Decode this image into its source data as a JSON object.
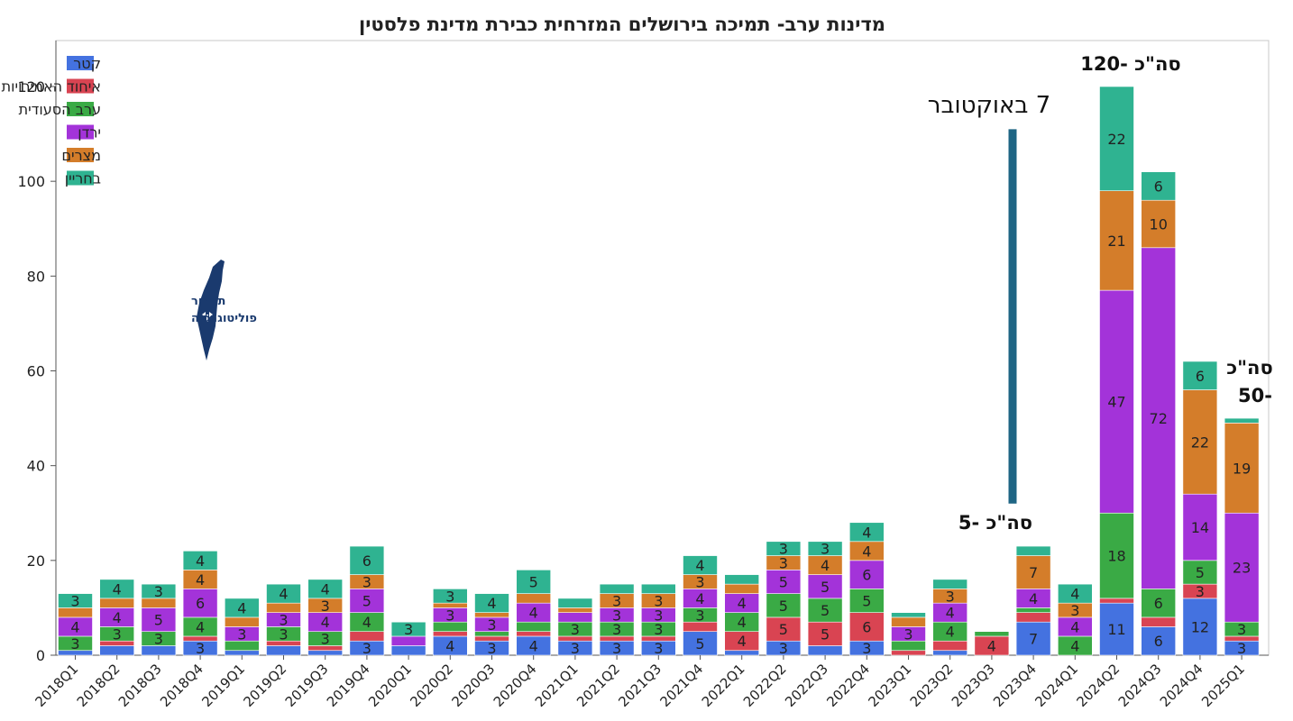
{
  "chart_data": {
    "type": "bar",
    "stacked": true,
    "title": "מדינות ערב- תמיכה בירושלים המזרחית כבירת מדינת פלסטין",
    "xlabel": "",
    "ylabel": "",
    "ylim": [
      0,
      128
    ],
    "yticks": [
      0,
      20,
      40,
      60,
      80,
      100,
      120
    ],
    "grid": false,
    "legend_position": "top-left",
    "categories": [
      "2018Q1",
      "2018Q2",
      "2018Q3",
      "2018Q4",
      "2019Q1",
      "2019Q2",
      "2019Q3",
      "2019Q4",
      "2020Q1",
      "2020Q2",
      "2020Q3",
      "2020Q4",
      "2021Q1",
      "2021Q2",
      "2021Q3",
      "2021Q4",
      "2022Q1",
      "2022Q2",
      "2022Q3",
      "2022Q4",
      "2023Q1",
      "2023Q2",
      "2023Q3",
      "2023Q4",
      "2024Q1",
      "2024Q2",
      "2024Q3",
      "2024Q4",
      "2025Q1"
    ],
    "series": [
      {
        "name": "קטר",
        "color": "#4472e0",
        "values": [
          1,
          2,
          2,
          3,
          1,
          2,
          1,
          3,
          2,
          4,
          3,
          4,
          3,
          3,
          3,
          5,
          1,
          3,
          2,
          3,
          0,
          1,
          0,
          7,
          0,
          11,
          6,
          12,
          3
        ]
      },
      {
        "name": "איחוד האמירויות",
        "color": "#d94452",
        "values": [
          0,
          1,
          0,
          1,
          0,
          1,
          1,
          2,
          0,
          1,
          1,
          1,
          1,
          1,
          1,
          2,
          4,
          5,
          5,
          6,
          1,
          2,
          4,
          2,
          0,
          1,
          2,
          3,
          1
        ]
      },
      {
        "name": "ערב הסעודית",
        "color": "#3aaa45",
        "values": [
          3,
          3,
          3,
          4,
          2,
          3,
          3,
          4,
          0,
          2,
          1,
          2,
          3,
          3,
          3,
          3,
          4,
          5,
          5,
          5,
          2,
          4,
          1,
          1,
          4,
          18,
          6,
          5,
          3
        ]
      },
      {
        "name": "ירדן",
        "color": "#a333d9",
        "values": [
          4,
          4,
          5,
          6,
          3,
          3,
          4,
          5,
          2,
          3,
          3,
          4,
          2,
          3,
          3,
          4,
          4,
          5,
          5,
          6,
          3,
          4,
          0,
          4,
          4,
          47,
          72,
          14,
          23
        ]
      },
      {
        "name": "מצרים",
        "color": "#d47d2a",
        "values": [
          2,
          2,
          2,
          4,
          2,
          2,
          3,
          3,
          0,
          1,
          1,
          2,
          1,
          3,
          3,
          3,
          2,
          3,
          4,
          4,
          2,
          3,
          0,
          7,
          3,
          21,
          10,
          22,
          19
        ]
      },
      {
        "name": "בחריין",
        "color": "#2fb391",
        "values": [
          3,
          4,
          3,
          4,
          4,
          4,
          4,
          6,
          3,
          3,
          4,
          5,
          2,
          2,
          2,
          4,
          2,
          3,
          3,
          4,
          1,
          2,
          0,
          2,
          4,
          22,
          6,
          6,
          1
        ]
      }
    ],
    "segment_labels": [
      {
        "cat": "2018Q1",
        "series": "ערב הסעודית",
        "text": "3"
      },
      {
        "cat": "2018Q1",
        "series": "ירדן",
        "text": "4"
      },
      {
        "cat": "2018Q1",
        "series": "בחריין",
        "text": "3"
      },
      {
        "cat": "2018Q2",
        "series": "ערב הסעודית",
        "text": "3"
      },
      {
        "cat": "2018Q2",
        "series": "ירדן",
        "text": "4"
      },
      {
        "cat": "2018Q2",
        "series": "בחריין",
        "text": "4"
      },
      {
        "cat": "2018Q3",
        "series": "ערב הסעודית",
        "text": "3"
      },
      {
        "cat": "2018Q3",
        "series": "ירדן",
        "text": "5"
      },
      {
        "cat": "2018Q3",
        "series": "בחריין",
        "text": "3"
      },
      {
        "cat": "2018Q4",
        "series": "קטר",
        "text": "3"
      },
      {
        "cat": "2018Q4",
        "series": "ערב הסעודית",
        "text": "4"
      },
      {
        "cat": "2018Q4",
        "series": "ירדן",
        "text": "6"
      },
      {
        "cat": "2018Q4",
        "series": "מצרים",
        "text": "4"
      },
      {
        "cat": "2018Q4",
        "series": "בחריין",
        "text": "4"
      },
      {
        "cat": "2019Q1",
        "series": "ירדן",
        "text": "3"
      },
      {
        "cat": "2019Q1",
        "series": "בחריין",
        "text": "4"
      },
      {
        "cat": "2019Q2",
        "series": "ערב הסעודית",
        "text": "3"
      },
      {
        "cat": "2019Q2",
        "series": "ירדן",
        "text": "3"
      },
      {
        "cat": "2019Q2",
        "series": "בחריין",
        "text": "4"
      },
      {
        "cat": "2019Q3",
        "series": "ערב הסעודית",
        "text": "3"
      },
      {
        "cat": "2019Q3",
        "series": "ירדן",
        "text": "4"
      },
      {
        "cat": "2019Q3",
        "series": "מצרים",
        "text": "3"
      },
      {
        "cat": "2019Q3",
        "series": "בחריין",
        "text": "4"
      },
      {
        "cat": "2019Q4",
        "series": "קטר",
        "text": "3"
      },
      {
        "cat": "2019Q4",
        "series": "ערב הסעודית",
        "text": "4"
      },
      {
        "cat": "2019Q4",
        "series": "ירדן",
        "text": "5"
      },
      {
        "cat": "2019Q4",
        "series": "מצרים",
        "text": "3"
      },
      {
        "cat": "2019Q4",
        "series": "בחריין",
        "text": "6"
      },
      {
        "cat": "2020Q1",
        "series": "בחריין",
        "text": "3"
      },
      {
        "cat": "2020Q2",
        "series": "קטר",
        "text": "4"
      },
      {
        "cat": "2020Q2",
        "series": "ירדן",
        "text": "3"
      },
      {
        "cat": "2020Q2",
        "series": "בחריין",
        "text": "3"
      },
      {
        "cat": "2020Q3",
        "series": "קטר",
        "text": "3"
      },
      {
        "cat": "2020Q3",
        "series": "ירדן",
        "text": "3"
      },
      {
        "cat": "2020Q3",
        "series": "בחריין",
        "text": "4"
      },
      {
        "cat": "2020Q4",
        "series": "קטר",
        "text": "4"
      },
      {
        "cat": "2020Q4",
        "series": "ירדן",
        "text": "4"
      },
      {
        "cat": "2020Q4",
        "series": "בחריין",
        "text": "5"
      },
      {
        "cat": "2021Q1",
        "series": "קטר",
        "text": "3"
      },
      {
        "cat": "2021Q1",
        "series": "ערב הסעודית",
        "text": "3"
      },
      {
        "cat": "2021Q2",
        "series": "קטר",
        "text": "3"
      },
      {
        "cat": "2021Q2",
        "series": "ערב הסעודית",
        "text": "3"
      },
      {
        "cat": "2021Q2",
        "series": "ירדן",
        "text": "3"
      },
      {
        "cat": "2021Q2",
        "series": "מצרים",
        "text": "3"
      },
      {
        "cat": "2021Q3",
        "series": "קטר",
        "text": "3"
      },
      {
        "cat": "2021Q3",
        "series": "ערב הסעודית",
        "text": "3"
      },
      {
        "cat": "2021Q3",
        "series": "ירדן",
        "text": "3"
      },
      {
        "cat": "2021Q3",
        "series": "מצרים",
        "text": "3"
      },
      {
        "cat": "2021Q4",
        "series": "קטר",
        "text": "5"
      },
      {
        "cat": "2021Q4",
        "series": "ערב הסעודית",
        "text": "3"
      },
      {
        "cat": "2021Q4",
        "series": "ירדן",
        "text": "4"
      },
      {
        "cat": "2021Q4",
        "series": "מצרים",
        "text": "3"
      },
      {
        "cat": "2021Q4",
        "series": "בחריין",
        "text": "4"
      },
      {
        "cat": "2022Q1",
        "series": "איחוד האמירויות",
        "text": "4"
      },
      {
        "cat": "2022Q1",
        "series": "ערב הסעודית",
        "text": "4"
      },
      {
        "cat": "2022Q1",
        "series": "ירדן",
        "text": "4"
      },
      {
        "cat": "2022Q2",
        "series": "קטר",
        "text": "3"
      },
      {
        "cat": "2022Q2",
        "series": "איחוד האמירויות",
        "text": "5"
      },
      {
        "cat": "2022Q2",
        "series": "ערב הסעודית",
        "text": "5"
      },
      {
        "cat": "2022Q2",
        "series": "ירדן",
        "text": "5"
      },
      {
        "cat": "2022Q2",
        "series": "מצרים",
        "text": "3"
      },
      {
        "cat": "2022Q2",
        "series": "בחריין",
        "text": "3"
      },
      {
        "cat": "2022Q3",
        "series": "איחוד האמירויות",
        "text": "5"
      },
      {
        "cat": "2022Q3",
        "series": "ערב הסעודית",
        "text": "5"
      },
      {
        "cat": "2022Q3",
        "series": "ירדן",
        "text": "5"
      },
      {
        "cat": "2022Q3",
        "series": "מצרים",
        "text": "4"
      },
      {
        "cat": "2022Q3",
        "series": "בחריין",
        "text": "3"
      },
      {
        "cat": "2022Q4",
        "series": "קטר",
        "text": "3"
      },
      {
        "cat": "2022Q4",
        "series": "איחוד האמירויות",
        "text": "6"
      },
      {
        "cat": "2022Q4",
        "series": "ערב הסעודית",
        "text": "5"
      },
      {
        "cat": "2022Q4",
        "series": "ירדן",
        "text": "6"
      },
      {
        "cat": "2022Q4",
        "series": "מצרים",
        "text": "4"
      },
      {
        "cat": "2022Q4",
        "series": "בחריין",
        "text": "4"
      },
      {
        "cat": "2023Q1",
        "series": "ירדן",
        "text": "3"
      },
      {
        "cat": "2023Q2",
        "series": "ערב הסעודית",
        "text": "4"
      },
      {
        "cat": "2023Q2",
        "series": "ירדן",
        "text": "4"
      },
      {
        "cat": "2023Q2",
        "series": "מצרים",
        "text": "3"
      },
      {
        "cat": "2023Q3",
        "series": "איחוד האמירויות",
        "text": "4"
      },
      {
        "cat": "2023Q4",
        "series": "קטר",
        "text": "7"
      },
      {
        "cat": "2023Q4",
        "series": "ירדן",
        "text": "4"
      },
      {
        "cat": "2023Q4",
        "series": "מצרים",
        "text": "7"
      },
      {
        "cat": "2024Q1",
        "series": "ערב הסעודית",
        "text": "4"
      },
      {
        "cat": "2024Q1",
        "series": "ירדן",
        "text": "4"
      },
      {
        "cat": "2024Q1",
        "series": "מצרים",
        "text": "3"
      },
      {
        "cat": "2024Q1",
        "series": "בחריין",
        "text": "4"
      },
      {
        "cat": "2024Q2",
        "series": "קטר",
        "text": "11"
      },
      {
        "cat": "2024Q2",
        "series": "ערב הסעודית",
        "text": "18"
      },
      {
        "cat": "2024Q2",
        "series": "ירדן",
        "text": "47"
      },
      {
        "cat": "2024Q2",
        "series": "מצרים",
        "text": "21"
      },
      {
        "cat": "2024Q2",
        "series": "בחריין",
        "text": "22"
      },
      {
        "cat": "2024Q3",
        "series": "קטר",
        "text": "6"
      },
      {
        "cat": "2024Q3",
        "series": "ערב הסעודית",
        "text": "6"
      },
      {
        "cat": "2024Q3",
        "series": "ירדן",
        "text": "72"
      },
      {
        "cat": "2024Q3",
        "series": "מצרים",
        "text": "10"
      },
      {
        "cat": "2024Q3",
        "series": "בחריין",
        "text": "6"
      },
      {
        "cat": "2024Q4",
        "series": "קטר",
        "text": "12"
      },
      {
        "cat": "2024Q4",
        "series": "איחוד האמירויות",
        "text": "3"
      },
      {
        "cat": "2024Q4",
        "series": "ערב הסעודית",
        "text": "5"
      },
      {
        "cat": "2024Q4",
        "series": "ירדן",
        "text": "14"
      },
      {
        "cat": "2024Q4",
        "series": "מצרים",
        "text": "22"
      },
      {
        "cat": "2024Q4",
        "series": "בחריין",
        "text": "6"
      },
      {
        "cat": "2025Q1",
        "series": "קטר",
        "text": "3"
      },
      {
        "cat": "2025Q1",
        "series": "ערב הסעודית",
        "text": "3"
      },
      {
        "cat": "2025Q1",
        "series": "ירדן",
        "text": "23"
      },
      {
        "cat": "2025Q1",
        "series": "מצרים",
        "text": "19"
      }
    ],
    "annotations": [
      {
        "text": "סה\"כ -120",
        "cat": "2024Q2",
        "style": "total"
      },
      {
        "text": "סה\"כ",
        "cat": "2025Q1",
        "style": "total"
      },
      {
        "text": "-50",
        "cat": "2025Q1",
        "style": "total"
      },
      {
        "text": "סה\"כ -5",
        "cat": "2023Q3",
        "style": "total"
      },
      {
        "text": "7 באוקטובר",
        "cat": "2023Q4",
        "style": "event"
      }
    ],
    "event_marker": {
      "cat_between": [
        "2023Q3",
        "2023Q4"
      ],
      "y_from": 32,
      "y_to": 111,
      "color": "#1e6584"
    }
  },
  "logo": {
    "line1": "תמרור",
    "line2": "פוליטוגרפיה"
  }
}
